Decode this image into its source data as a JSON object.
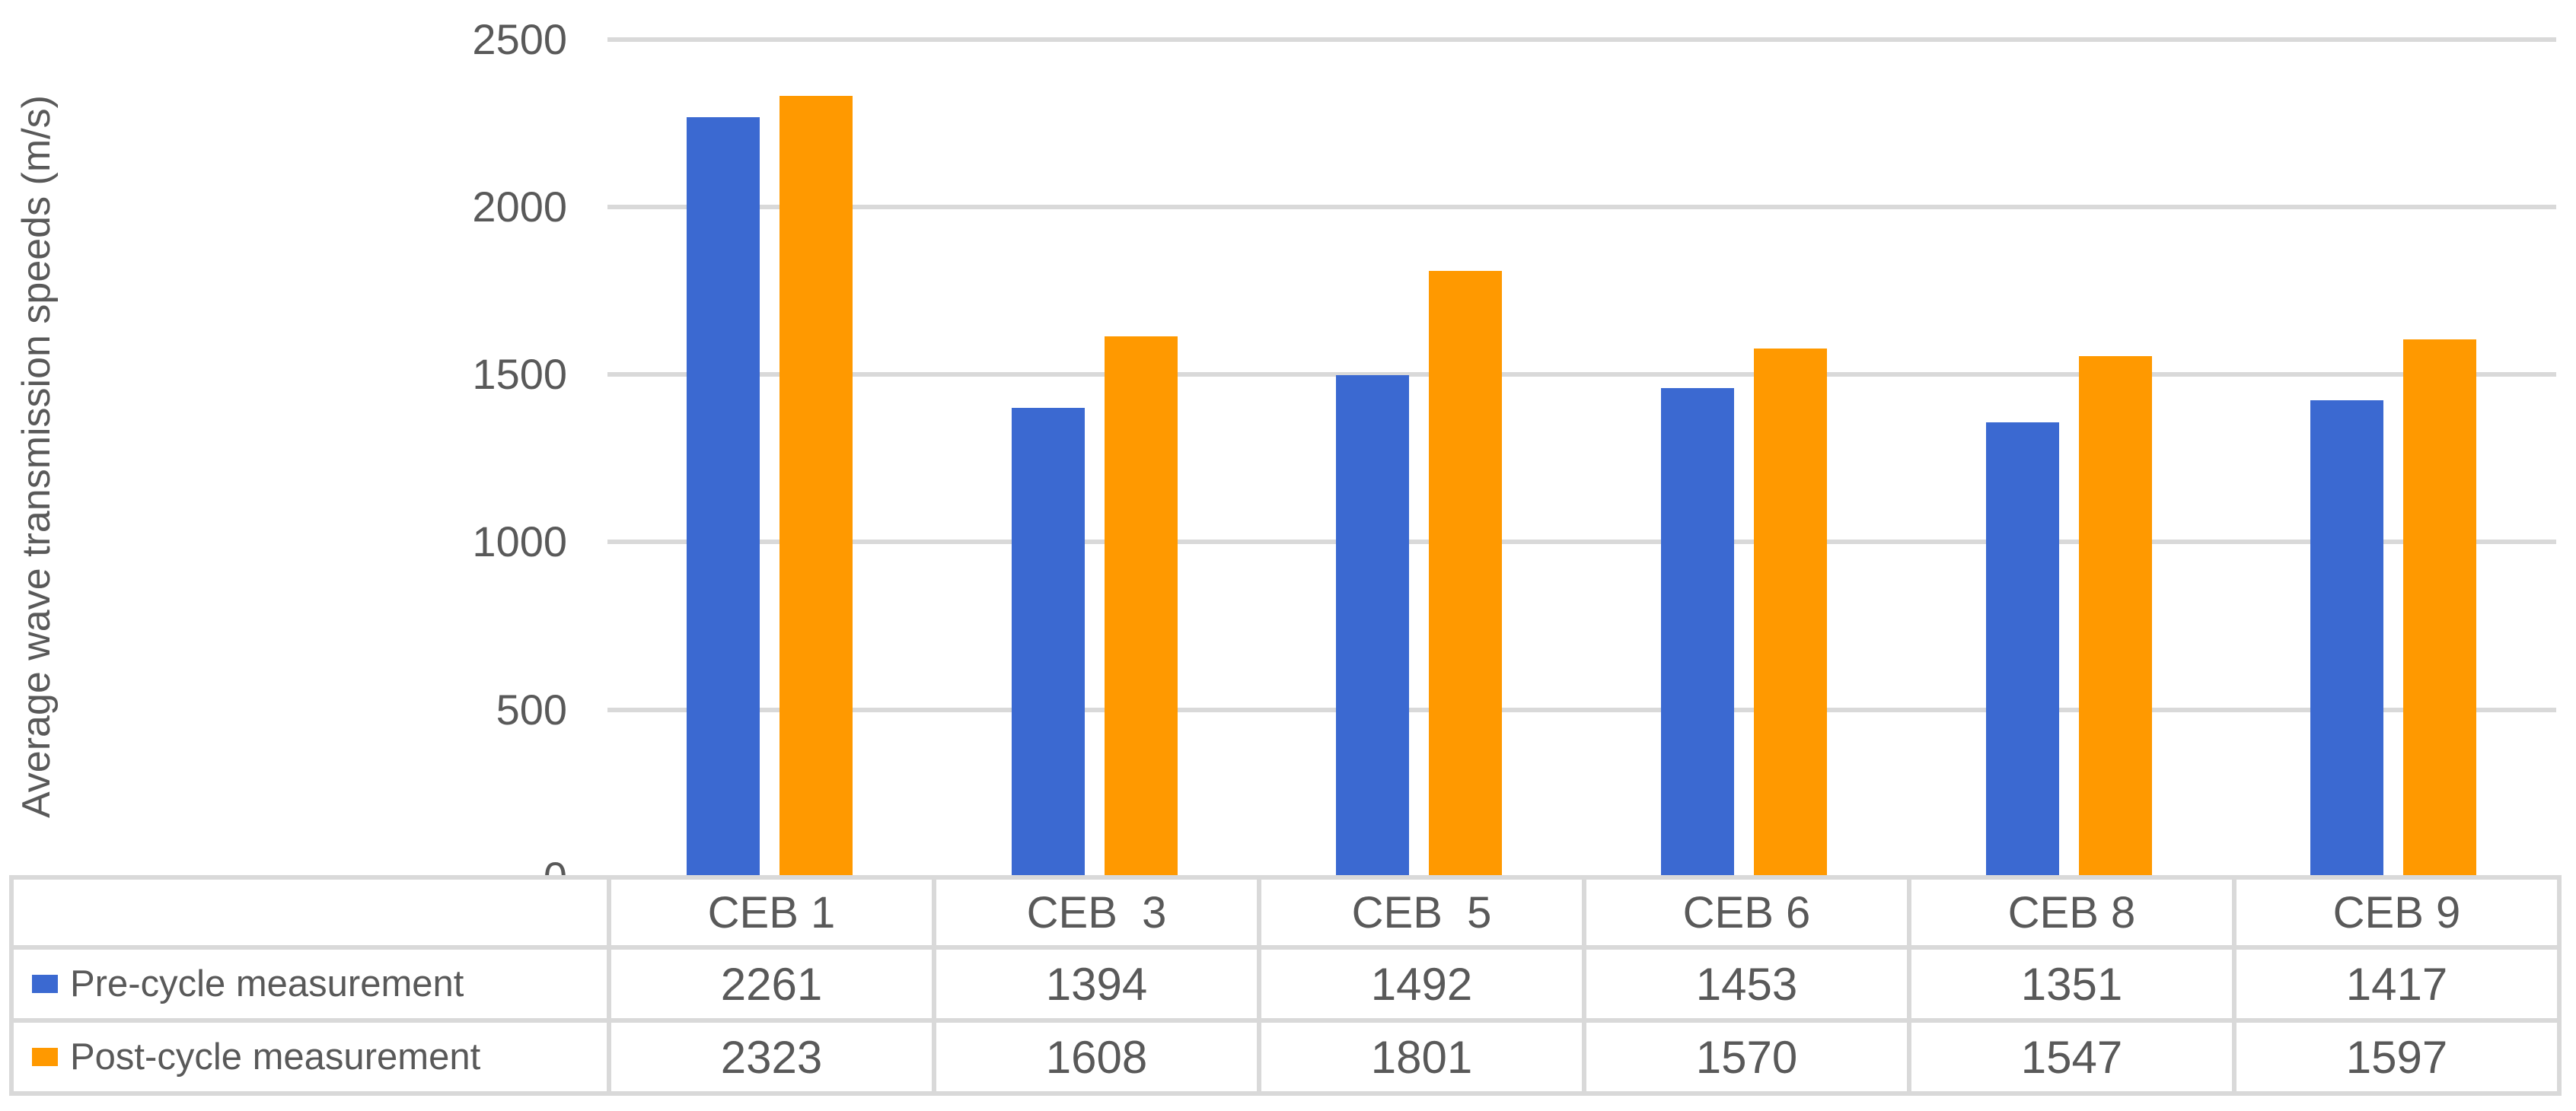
{
  "chart_data": {
    "type": "bar",
    "title": "",
    "xlabel": "",
    "ylabel": "Average wave transmission speeds (m/s)",
    "categories": [
      "CEB 1",
      "CEB  3",
      "CEB  5",
      "CEB 6",
      "CEB 8",
      "CEB 9"
    ],
    "series": [
      {
        "name": "Pre-cycle measurement",
        "color": "#3B69D1",
        "values": [
          2261,
          1394,
          1492,
          1453,
          1351,
          1417
        ]
      },
      {
        "name": "Post-cycle measurement",
        "color": "#FF9900",
        "values": [
          2323,
          1608,
          1801,
          1570,
          1547,
          1597
        ]
      }
    ],
    "ylim": [
      0,
      2500
    ],
    "y_ticks": [
      0,
      500,
      1000,
      1500,
      2000,
      2500
    ],
    "grid": true,
    "legend_position": "data-table-left-column"
  },
  "colors": {
    "grid": "#D9D9D9",
    "table_border": "#D9D9D9",
    "text": "#595959",
    "background": "#FFFFFF"
  }
}
